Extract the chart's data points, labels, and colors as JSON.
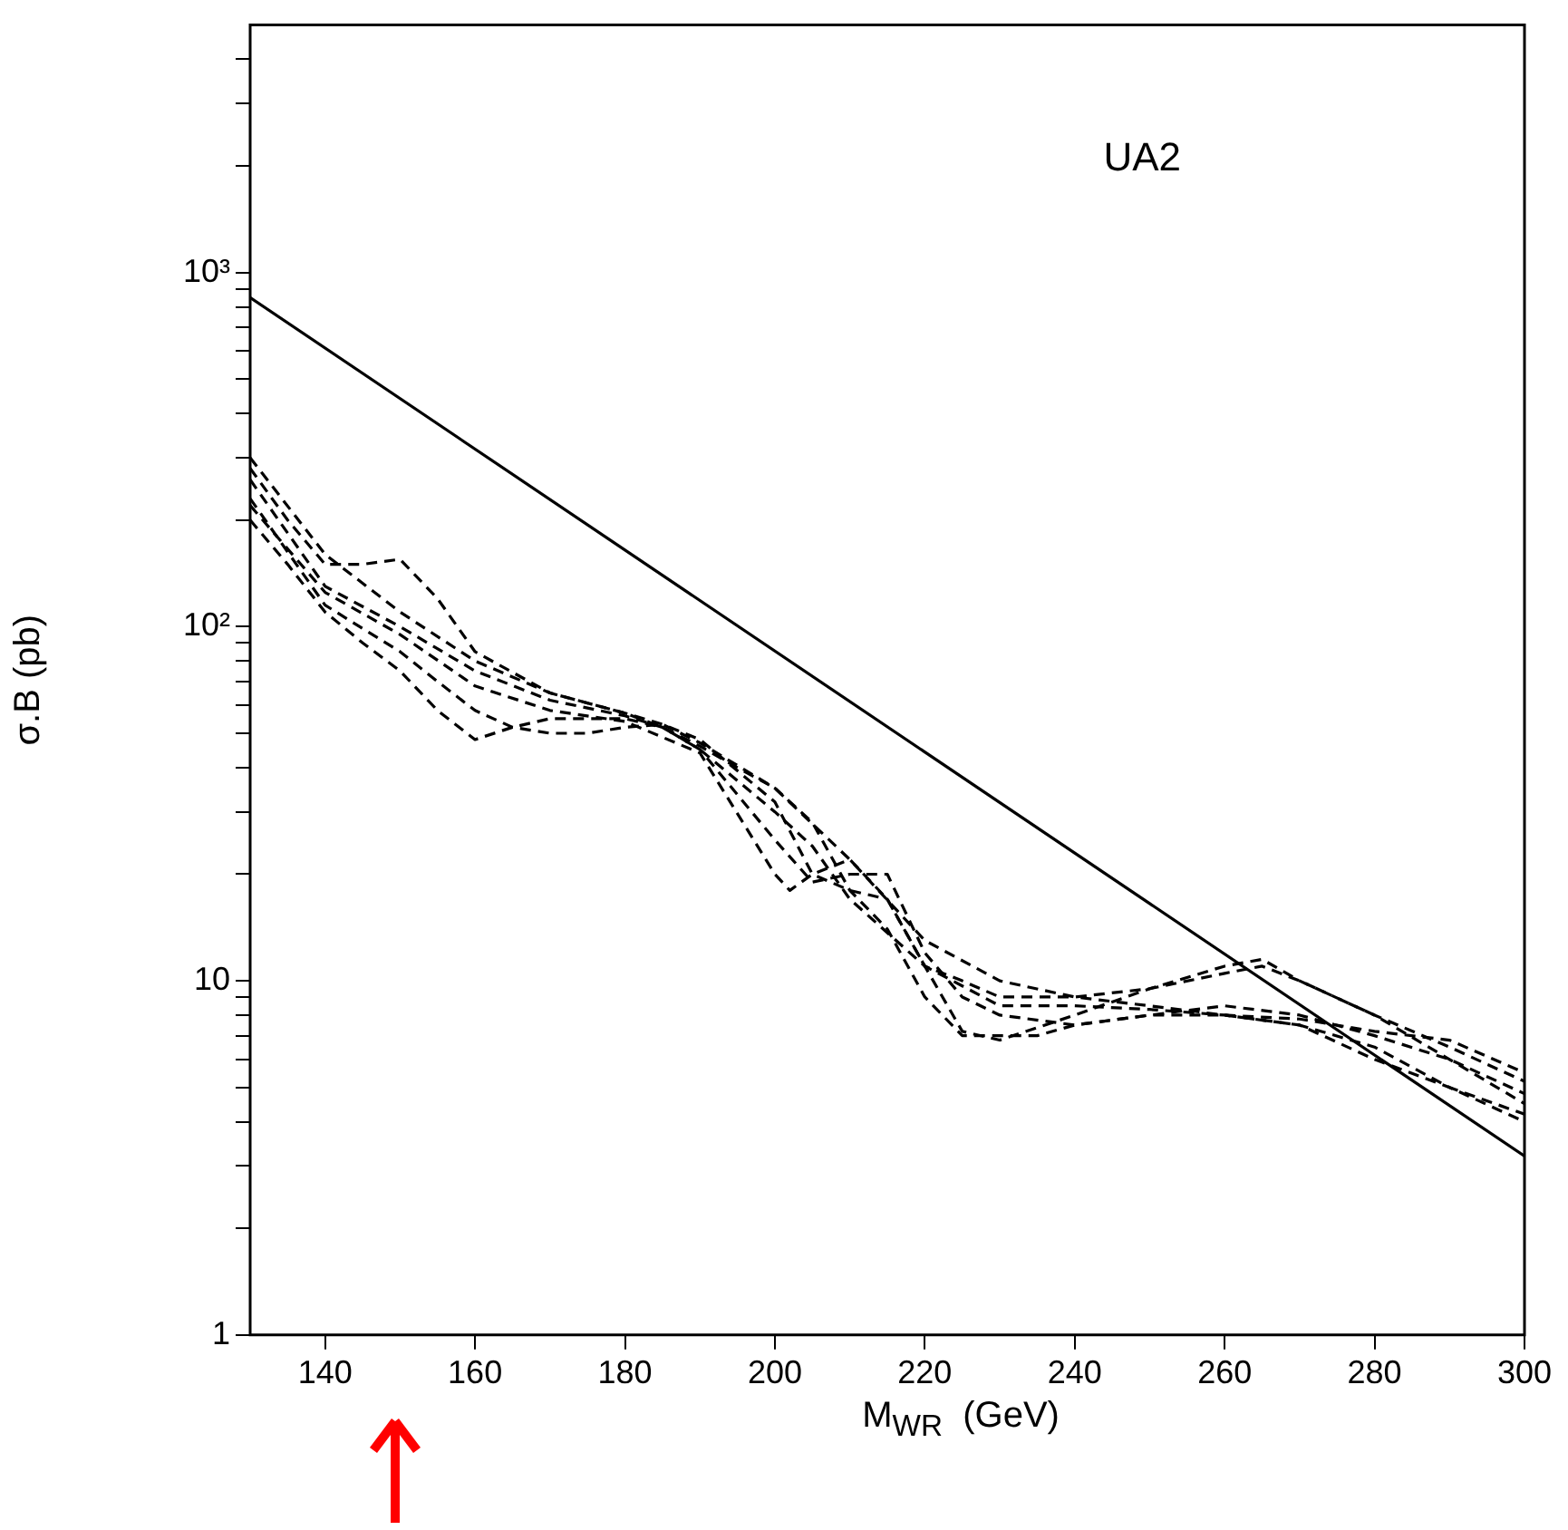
{
  "chart_data": {
    "type": "line",
    "xlabel": "M$_{WR}$  (GeV)",
    "ylabel": "σ.B (pb)",
    "annotations": [
      "UA2"
    ],
    "log": "y",
    "grid": false,
    "legend": false,
    "marker": "none",
    "xlim": [
      130,
      300
    ],
    "xticks": [
      140,
      160,
      180,
      200,
      220,
      240,
      260,
      280,
      300
    ],
    "ylim": [
      1,
      5000
    ],
    "yticks": [
      1,
      {
        "value": 2,
        "label": null
      },
      {
        "value": 3,
        "label": null
      },
      {
        "value": 4,
        "label": null
      },
      {
        "value": 5,
        "label": null
      },
      {
        "value": 6,
        "label": null
      },
      {
        "value": 7,
        "label": null
      },
      {
        "value": 8,
        "label": null
      },
      {
        "value": 9,
        "label": null
      },
      10,
      {
        "value": 20,
        "label": null
      },
      {
        "value": 30,
        "label": null
      },
      {
        "value": 40,
        "label": null
      },
      {
        "value": 50,
        "label": null
      },
      {
        "value": 60,
        "label": null
      },
      {
        "value": 70,
        "label": null
      },
      {
        "value": 80,
        "label": null
      },
      {
        "value": 90,
        "label": null
      },
      {
        "value": 100,
        "label": "10²"
      },
      {
        "value": 200,
        "label": null
      },
      {
        "value": 300,
        "label": null
      },
      {
        "value": 400,
        "label": null
      },
      {
        "value": 500,
        "label": null
      },
      {
        "value": 600,
        "label": null
      },
      {
        "value": 700,
        "label": null
      },
      {
        "value": 800,
        "label": null
      },
      {
        "value": 900,
        "label": null
      },
      {
        "value": 1000,
        "label": "10³"
      },
      {
        "value": 2000,
        "label": null
      },
      {
        "value": 3000,
        "label": null
      },
      {
        "value": 4000,
        "label": null
      }
    ],
    "series": [
      {
        "color": "#000000",
        "line_style": "solid",
        "x": [
          130,
          300
        ],
        "values": [
          850,
          3.2
        ]
      },
      {
        "color": "#000000",
        "line_style": "dashed",
        "x": [
          130,
          135,
          140,
          145,
          150,
          155,
          160,
          170,
          180,
          185,
          190,
          200,
          205,
          210,
          215,
          220,
          225,
          230,
          240,
          250,
          260,
          265,
          270,
          280,
          290,
          300
        ],
        "values": [
          280,
          200,
          150,
          150,
          155,
          120,
          85,
          65,
          57,
          53,
          48,
          32,
          20,
          18,
          17,
          11,
          10,
          9,
          9,
          9.5,
          10.5,
          11,
          10,
          8,
          6.5,
          5.2
        ]
      },
      {
        "color": "#000000",
        "line_style": "dashed",
        "x": [
          130,
          135,
          140,
          145,
          150,
          155,
          160,
          165,
          170,
          180,
          185,
          190,
          200,
          205,
          210,
          215,
          220,
          225,
          230,
          240,
          250,
          260,
          270,
          280,
          290,
          300
        ],
        "values": [
          200,
          150,
          110,
          90,
          75,
          58,
          48,
          52,
          55,
          55,
          52,
          45,
          25,
          19,
          20,
          20,
          12,
          9,
          8,
          7.5,
          8,
          8.5,
          8,
          7,
          6,
          4.8
        ]
      },
      {
        "color": "#000000",
        "line_style": "dashed",
        "x": [
          130,
          140,
          150,
          155,
          160,
          165,
          170,
          175,
          180,
          185,
          190,
          200,
          205,
          210,
          215,
          220,
          225,
          230,
          235,
          240,
          250,
          260,
          270,
          280,
          290,
          300
        ],
        "values": [
          230,
          115,
          85,
          70,
          58,
          52,
          50,
          50,
          52,
          53,
          47,
          35,
          28,
          18,
          14,
          9,
          7,
          7,
          7,
          7.5,
          8,
          8,
          7.5,
          6.5,
          5,
          4.2
        ]
      },
      {
        "color": "#000000",
        "line_style": "dashed",
        "x": [
          130,
          140,
          150,
          160,
          170,
          180,
          185,
          190,
          200,
          205,
          210,
          220,
          225,
          230,
          240,
          250,
          260,
          265,
          270,
          280,
          290,
          300
        ],
        "values": [
          260,
          130,
          100,
          75,
          62,
          56,
          52,
          45,
          30,
          24,
          17,
          11,
          7.2,
          6.8,
          8,
          9.5,
          11,
          11.5,
          10,
          8,
          6,
          4.5
        ]
      },
      {
        "color": "#000000",
        "line_style": "dashed",
        "x": [
          130,
          140,
          150,
          160,
          170,
          180,
          185,
          190,
          195,
          200,
          210,
          220,
          230,
          240,
          250,
          260,
          270,
          280,
          290,
          300
        ],
        "values": [
          300,
          160,
          110,
          80,
          65,
          57,
          52,
          46,
          40,
          35,
          22,
          13,
          10,
          9,
          8.5,
          8,
          7.8,
          7.2,
          6.8,
          5.5
        ]
      },
      {
        "color": "#000000",
        "line_style": "dashed",
        "x": [
          130,
          140,
          150,
          160,
          170,
          180,
          190,
          200,
          202,
          205,
          210,
          215,
          220,
          230,
          240,
          250,
          260,
          270,
          280,
          290,
          300
        ],
        "values": [
          220,
          125,
          95,
          68,
          58,
          54,
          44,
          20,
          18,
          20,
          22,
          17,
          11,
          8.5,
          8.5,
          8.3,
          8,
          7.5,
          6,
          5,
          4
        ]
      }
    ]
  }
}
